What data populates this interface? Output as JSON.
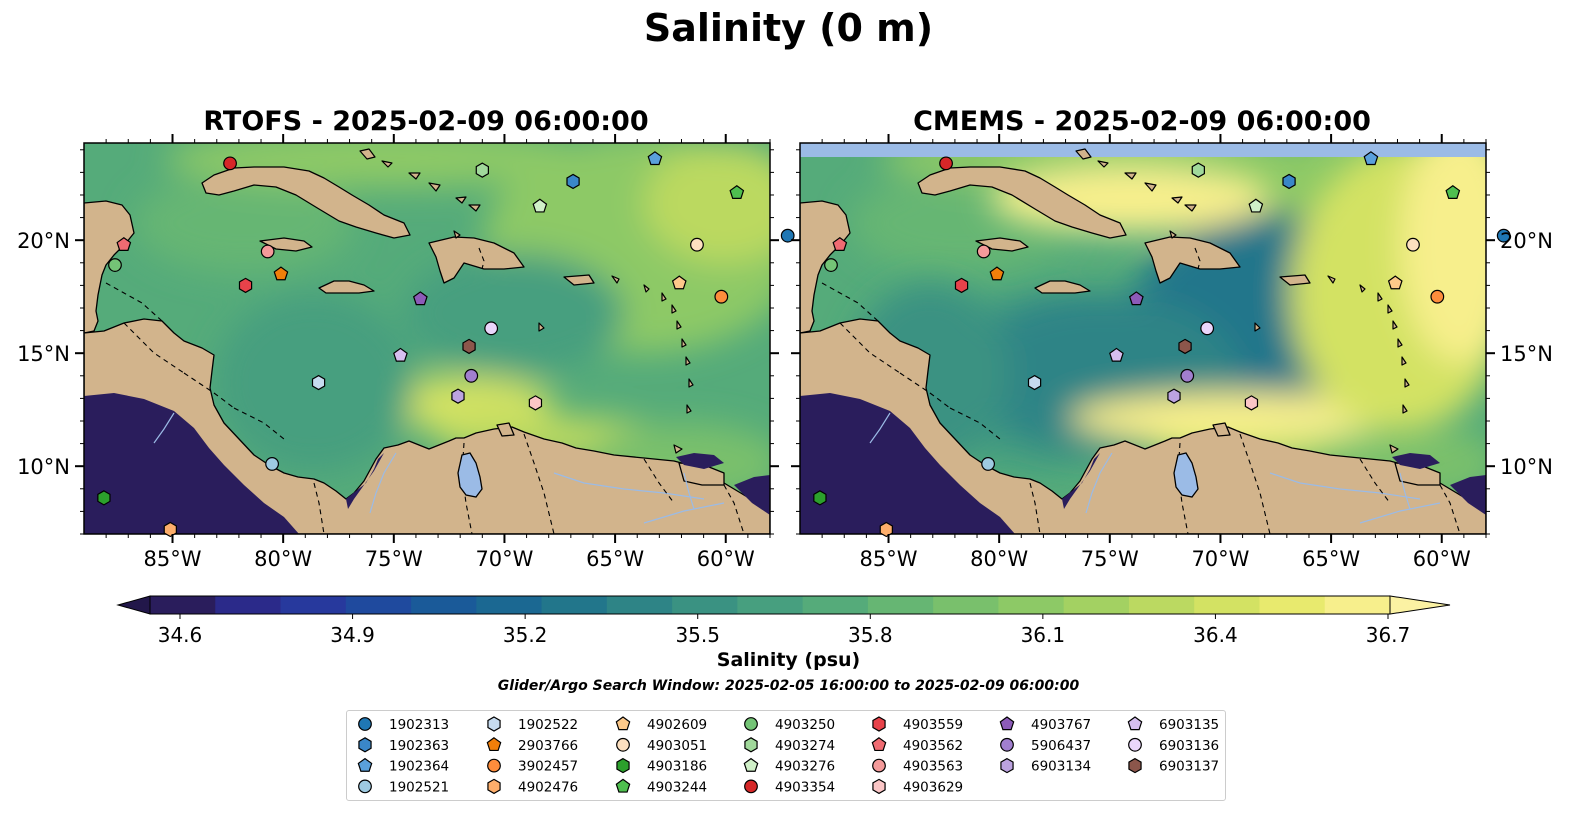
{
  "title": "Salinity (0 m)",
  "panels": [
    {
      "title": "RTOFS - 2025-02-09 06:00:00"
    },
    {
      "title": "CMEMS - 2025-02-09 06:00:00"
    }
  ],
  "lon_ticks": [
    "85°W",
    "80°W",
    "75°W",
    "70°W",
    "65°W",
    "60°W"
  ],
  "lat_ticks": [
    "20°N",
    "15°N",
    "10°N"
  ],
  "colorbar": {
    "label": "Salinity (psu)",
    "ticks": [
      "34.6",
      "34.9",
      "35.2",
      "35.5",
      "35.8",
      "36.1",
      "36.4",
      "36.7"
    ],
    "colors": [
      "#2a1d5c",
      "#2b2a8a",
      "#27399d",
      "#1f4a9e",
      "#1a5a99",
      "#1b6892",
      "#22768b",
      "#2e8486",
      "#3a9282",
      "#479f7f",
      "#55ab7a",
      "#66b673",
      "#79c06c",
      "#8dc966",
      "#a3d162",
      "#bbd961",
      "#d3e263",
      "#e8ea6e",
      "#f7ef8c"
    ],
    "under_color": "#22174a",
    "over_color": "#fbf2a3"
  },
  "search_window": "Glider/Argo Search Window: 2025-02-05 16:00:00 to 2025-02-09 06:00:00",
  "colors": {
    "land": "#d2b48c",
    "deep_low": "#2a1d5c",
    "lake": "#9bbbe6",
    "cmems_band": "#9bbbe6"
  },
  "legend": {
    "columns": [
      [
        {
          "id": "1902313",
          "shape": "circle",
          "color": "#1f77b4"
        },
        {
          "id": "1902363",
          "shape": "hexagon",
          "color": "#3a87c8"
        },
        {
          "id": "1902364",
          "shape": "pentagon",
          "color": "#5aa0dc"
        },
        {
          "id": "1902521",
          "shape": "circle",
          "color": "#9ecae1"
        }
      ],
      [
        {
          "id": "1902522",
          "shape": "hexagon",
          "color": "#c6dbef"
        },
        {
          "id": "2903766",
          "shape": "pentagon",
          "color": "#f17f0a"
        },
        {
          "id": "3902457",
          "shape": "circle",
          "color": "#fd8d3c"
        },
        {
          "id": "4902476",
          "shape": "hexagon",
          "color": "#fdae6b"
        }
      ],
      [
        {
          "id": "4902609",
          "shape": "pentagon",
          "color": "#fdc98a"
        },
        {
          "id": "4903051",
          "shape": "circle",
          "color": "#fde0c0"
        },
        {
          "id": "4903186",
          "shape": "hexagon",
          "color": "#2ca02c"
        },
        {
          "id": "4903244",
          "shape": "pentagon",
          "color": "#4fbf4f"
        }
      ],
      [
        {
          "id": "4903250",
          "shape": "circle",
          "color": "#74c476"
        },
        {
          "id": "4903274",
          "shape": "hexagon",
          "color": "#a1d99b"
        },
        {
          "id": "4903276",
          "shape": "pentagon",
          "color": "#d0f0c8"
        },
        {
          "id": "4903354",
          "shape": "circle",
          "color": "#d62728"
        }
      ],
      [
        {
          "id": "4903559",
          "shape": "hexagon",
          "color": "#e8424a"
        },
        {
          "id": "4903562",
          "shape": "pentagon",
          "color": "#ef6b72"
        },
        {
          "id": "4903563",
          "shape": "circle",
          "color": "#f49a9a"
        },
        {
          "id": "4903629",
          "shape": "hexagon",
          "color": "#fbc6c6"
        }
      ],
      [
        {
          "id": "4903767",
          "shape": "pentagon",
          "color": "#8c5bb8"
        },
        {
          "id": "5906437",
          "shape": "circle",
          "color": "#a17fcf"
        },
        {
          "id": "6903134",
          "shape": "hexagon",
          "color": "#bca3e0"
        }
      ],
      [
        {
          "id": "6903135",
          "shape": "pentagon",
          "color": "#d6bff0"
        },
        {
          "id": "6903136",
          "shape": "circle",
          "color": "#ead6fb"
        },
        {
          "id": "6903137",
          "shape": "hexagon",
          "color": "#8c564b"
        }
      ]
    ]
  },
  "float_positions": [
    {
      "id": "4903354",
      "lon": -82.4,
      "lat": 23.4
    },
    {
      "id": "1902364",
      "lon": -63.2,
      "lat": 23.6
    },
    {
      "id": "4903274",
      "lon": -71.0,
      "lat": 23.1
    },
    {
      "id": "1902363",
      "lon": -66.9,
      "lat": 22.6
    },
    {
      "id": "4903244",
      "lon": -59.5,
      "lat": 22.1
    },
    {
      "id": "4903276",
      "lon": -68.4,
      "lat": 21.5
    },
    {
      "id": "1902313",
      "lon": -57.2,
      "lat": 20.2
    },
    {
      "id": "4903562",
      "lon": -87.2,
      "lat": 19.8
    },
    {
      "id": "4903563",
      "lon": -80.7,
      "lat": 19.5
    },
    {
      "id": "4903051",
      "lon": -61.3,
      "lat": 19.8
    },
    {
      "id": "4903250",
      "lon": -87.6,
      "lat": 18.9
    },
    {
      "id": "2903766",
      "lon": -80.1,
      "lat": 18.5
    },
    {
      "id": "4903559",
      "lon": -81.7,
      "lat": 18.0
    },
    {
      "id": "4902609",
      "lon": -62.1,
      "lat": 18.1
    },
    {
      "id": "3902457",
      "lon": -60.2,
      "lat": 17.5
    },
    {
      "id": "4903767",
      "lon": -73.8,
      "lat": 17.4
    },
    {
      "id": "6903136",
      "lon": -70.6,
      "lat": 16.1
    },
    {
      "id": "6903137",
      "lon": -71.6,
      "lat": 15.3
    },
    {
      "id": "6903135",
      "lon": -74.7,
      "lat": 14.9
    },
    {
      "id": "5906437",
      "lon": -71.5,
      "lat": 14.0
    },
    {
      "id": "1902522",
      "lon": -78.4,
      "lat": 13.7
    },
    {
      "id": "6903134",
      "lon": -72.1,
      "lat": 13.1
    },
    {
      "id": "4903629",
      "lon": -68.6,
      "lat": 12.8
    },
    {
      "id": "1902521",
      "lon": -80.5,
      "lat": 10.1
    },
    {
      "id": "4903186",
      "lon": -88.1,
      "lat": 8.6
    },
    {
      "id": "4902476",
      "lon": -85.1,
      "lat": 7.2
    }
  ]
}
